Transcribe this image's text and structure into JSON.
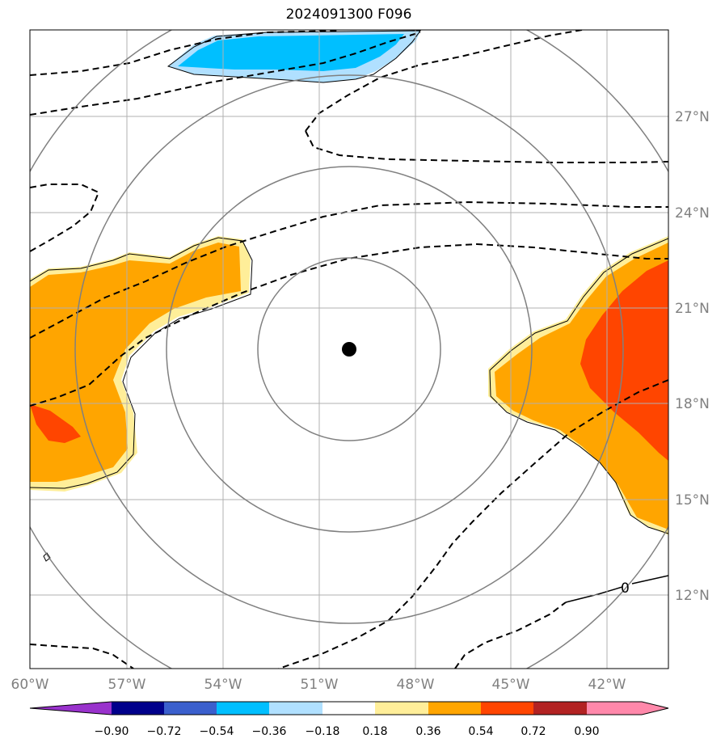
{
  "title": "2024091300 F096",
  "map": {
    "lon_labels": [
      "60°W",
      "57°W",
      "54°W",
      "51°W",
      "48°W",
      "45°W",
      "42°W"
    ],
    "lat_labels": [
      "27°N",
      "24°N",
      "21°N",
      "18°N",
      "15°N",
      "12°N"
    ],
    "contour_label": "0",
    "center": {
      "lon": -50.0,
      "lat": 19.7
    },
    "range_rings_deg": [
      3,
      6,
      9,
      12
    ],
    "colors": {
      "grid": "#b0b0b0",
      "rings": "#808080",
      "pos_036": "#ffee99",
      "pos_054": "#ffa500",
      "pos_072": "#ff4500",
      "neg_036": "#b0e0ff",
      "neg_054": "#00bfff"
    }
  },
  "colorbar": {
    "ticks": [
      "−0.90",
      "−0.72",
      "−0.54",
      "−0.36",
      "−0.18",
      "0.18",
      "0.36",
      "0.54",
      "0.72",
      "0.90"
    ],
    "colors": [
      "#9932cc",
      "#00008b",
      "#3a5fcd",
      "#00bfff",
      "#b0e0ff",
      "#ffffff",
      "#ffee99",
      "#ffa500",
      "#ff4500",
      "#b22222",
      "#ff88aa"
    ]
  }
}
